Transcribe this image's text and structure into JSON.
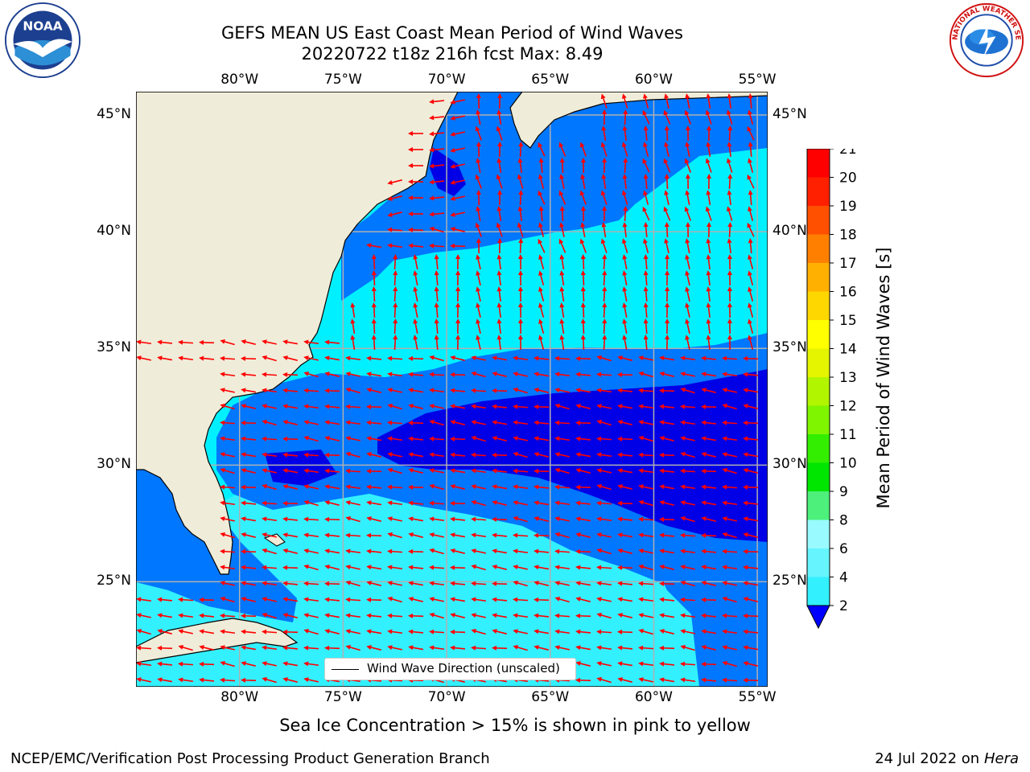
{
  "header": {
    "title_line1": "GEFS MEAN US East Coast Mean Period of Wind Waves",
    "title_line2": "20220722 t18z 216h fcst   Max: 8.49"
  },
  "map": {
    "lon_labels": [
      "80°W",
      "75°W",
      "70°W",
      "65°W",
      "60°W",
      "55°W"
    ],
    "lat_labels": [
      "45°N",
      "40°N",
      "35°N",
      "30°N",
      "25°N"
    ],
    "lon_range": [
      -85,
      -54.5
    ],
    "lat_range": [
      20.5,
      46
    ],
    "colors": {
      "land": "#efedd9",
      "grid": "#b0b0b0",
      "arrow": "#ff0000",
      "coast": "#000000"
    },
    "legend": {
      "label": "Wind Wave Direction (unscaled)",
      "placement": "lower center"
    }
  },
  "colorbar": {
    "label": "Mean Period of Wind Waves [s]",
    "ticks": [
      "2",
      "4",
      "6",
      "8",
      "9",
      "10",
      "11",
      "12",
      "13",
      "14",
      "15",
      "16",
      "17",
      "18",
      "19",
      "20",
      "21"
    ],
    "colors": [
      "#0033ff",
      "#00e5ff",
      "#33f0ff",
      "#66f5ff",
      "#99fbff",
      "#4cf07a",
      "#00e600",
      "#33ee00",
      "#7ff500",
      "#b2f500",
      "#e5f500",
      "#ffff00",
      "#ffd700",
      "#ffb000",
      "#ff8000",
      "#ff5000",
      "#ff2000",
      "#ff0000"
    ],
    "extend_min_color": "#0000ff"
  },
  "footer": {
    "note": "Sea Ice Concentration > 15% is shown in pink to yellow",
    "credit_left": "NCEP/EMC/Verification Post Processing Product Generation Branch",
    "credit_right_date": "24 Jul 2022 on ",
    "credit_right_host": "Hera"
  },
  "logos": {
    "left": {
      "icon": "noaa-logo-icon",
      "text": "NOAA"
    },
    "right": {
      "icon": "nws-logo-icon",
      "text": "NATIONAL WEATHER SERVICE"
    }
  }
}
